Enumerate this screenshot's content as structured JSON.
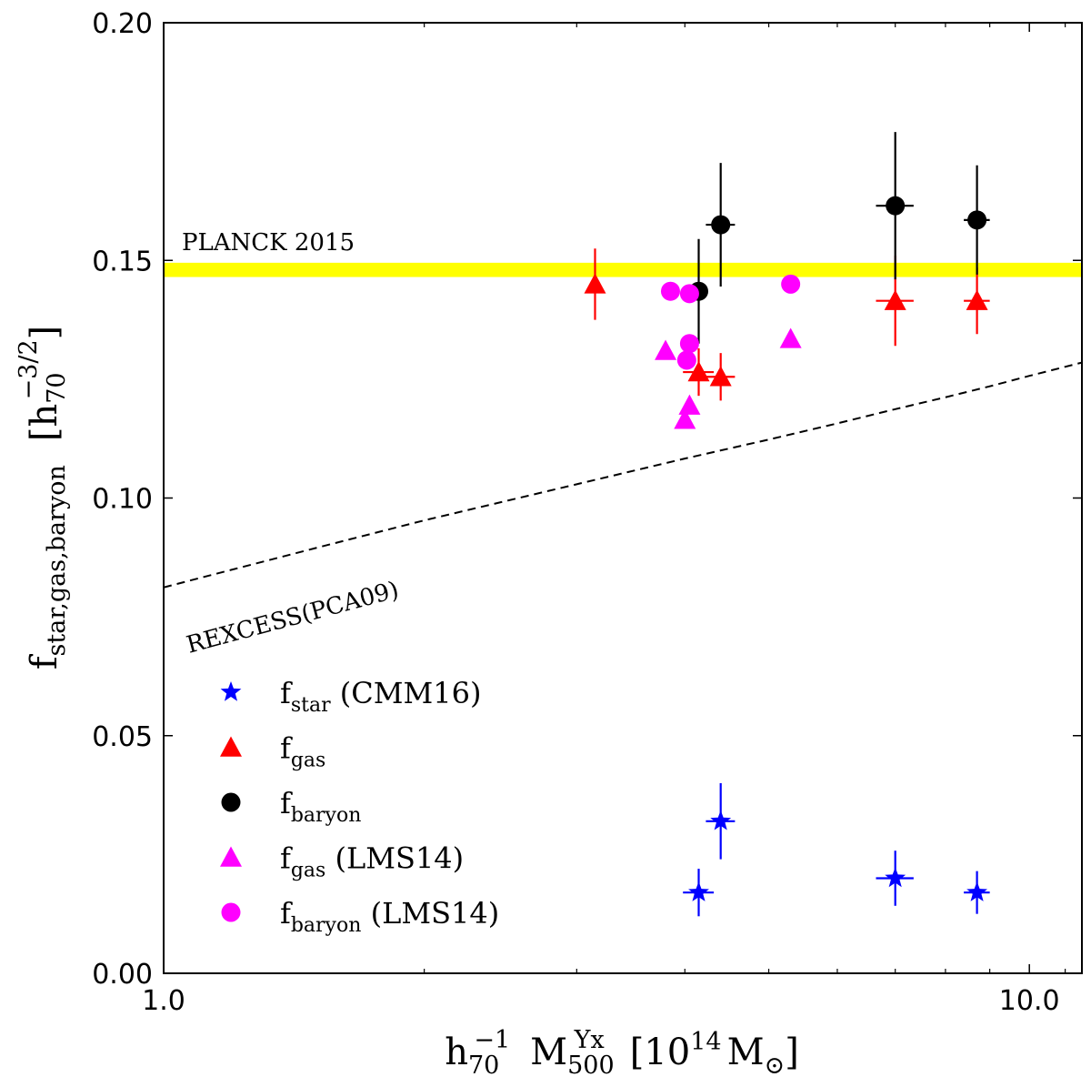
{
  "chart_data": {
    "type": "scatter",
    "x_scale": "log",
    "xlim": [
      1.0,
      11.5
    ],
    "ylim": [
      0.0,
      0.2
    ],
    "xticks": [
      1.0,
      10.0
    ],
    "xtick_labels": [
      "1.0",
      "10.0"
    ],
    "yticks": [
      0.0,
      0.05,
      0.1,
      0.15,
      0.2
    ],
    "ytick_labels": [
      "0.00",
      "0.05",
      "0.10",
      "0.15",
      "0.20"
    ],
    "xlabel": {
      "prefix": "h",
      "prefix_sup": "−1",
      "prefix_sub": "70",
      "symbol": "M",
      "symbol_sup": "Yx",
      "symbol_sub": "500",
      "unit_open": "[10",
      "unit_exp": "14",
      "unit_m": "M",
      "unit_sub": "⊙",
      "unit_close": "]"
    },
    "ylabel": {
      "main": "f",
      "main_sub": "star,gas,baryon",
      "unit_open": "[h",
      "unit_sub": "70",
      "unit_sup": "−3/2",
      "unit_close": "]"
    },
    "planck": {
      "label": "PLANCK 2015",
      "y_low": 0.1465,
      "y_high": 0.1495,
      "color": "#ffff00"
    },
    "rexcess": {
      "label": "REXCESS(PCA09)",
      "x": [
        1.0,
        1.5,
        2.0,
        3.0,
        4.0,
        5.0,
        6.0,
        7.0,
        8.0,
        9.0,
        10.0,
        11.5
      ],
      "y": [
        0.0812,
        0.0895,
        0.0953,
        0.1029,
        0.1083,
        0.1123,
        0.1157,
        0.1187,
        0.1212,
        0.1235,
        0.1257,
        0.1285
      ]
    },
    "series": [
      {
        "name": "f_star (CMM16)",
        "marker": "star",
        "color": "#0000ff",
        "points": [
          {
            "x": 4.15,
            "y": 0.017,
            "xerr": 0.17,
            "yerr": 0.005
          },
          {
            "x": 4.4,
            "y": 0.032,
            "xerr": 0.17,
            "yerr": 0.008
          },
          {
            "x": 7.0,
            "y": 0.02,
            "xerr": 0.35,
            "yerr": 0.0058
          },
          {
            "x": 8.7,
            "y": 0.017,
            "xerr": 0.3,
            "yerr": 0.0045
          }
        ]
      },
      {
        "name": "f_gas",
        "marker": "triangle",
        "color": "#ff0000",
        "points": [
          {
            "x": 3.15,
            "y": 0.145,
            "xerr": 0.0,
            "yerr": 0.0075
          },
          {
            "x": 4.15,
            "y": 0.1265,
            "xerr": 0.17,
            "yerr": 0.005
          },
          {
            "x": 4.4,
            "y": 0.1255,
            "xerr": 0.17,
            "yerr": 0.005
          },
          {
            "x": 7.0,
            "y": 0.1415,
            "xerr": 0.35,
            "yerr": 0.0095
          },
          {
            "x": 8.7,
            "y": 0.1415,
            "xerr": 0.3,
            "yerr": 0.007
          }
        ]
      },
      {
        "name": "f_baryon",
        "marker": "circle",
        "color": "#000000",
        "points": [
          {
            "x": 4.15,
            "y": 0.1435,
            "xerr": 0.0,
            "yerr": 0.011
          },
          {
            "x": 4.4,
            "y": 0.1575,
            "xerr": 0.17,
            "yerr": 0.013
          },
          {
            "x": 7.0,
            "y": 0.1615,
            "xerr": 0.35,
            "yerr": 0.0155
          },
          {
            "x": 8.7,
            "y": 0.1585,
            "xerr": 0.3,
            "yerr": 0.0115
          }
        ]
      },
      {
        "name": "f_gas (LMS14)",
        "marker": "triangle",
        "color": "#ff00ff",
        "points": [
          {
            "x": 3.8,
            "y": 0.131
          },
          {
            "x": 4.05,
            "y": 0.1195
          },
          {
            "x": 4.0,
            "y": 0.1165
          },
          {
            "x": 5.3,
            "y": 0.1335
          }
        ]
      },
      {
        "name": "f_baryon (LMS14)",
        "marker": "circle",
        "color": "#ff00ff",
        "points": [
          {
            "x": 3.85,
            "y": 0.1435
          },
          {
            "x": 4.05,
            "y": 0.143
          },
          {
            "x": 4.05,
            "y": 0.1325
          },
          {
            "x": 4.02,
            "y": 0.129
          },
          {
            "x": 5.3,
            "y": 0.145
          }
        ]
      }
    ],
    "legend": {
      "position": "lower-left",
      "entries": [
        {
          "marker": "star",
          "color": "#0000ff",
          "main": "f",
          "sub": "star",
          "suffix": " (CMM16)"
        },
        {
          "marker": "triangle",
          "color": "#ff0000",
          "main": "f",
          "sub": "gas",
          "suffix": ""
        },
        {
          "marker": "circle",
          "color": "#000000",
          "main": "f",
          "sub": "baryon",
          "suffix": ""
        },
        {
          "marker": "triangle",
          "color": "#ff00ff",
          "main": "f",
          "sub": "gas",
          "suffix": " (LMS14)"
        },
        {
          "marker": "circle",
          "color": "#ff00ff",
          "main": "f",
          "sub": "baryon",
          "suffix": " (LMS14)"
        }
      ]
    }
  }
}
